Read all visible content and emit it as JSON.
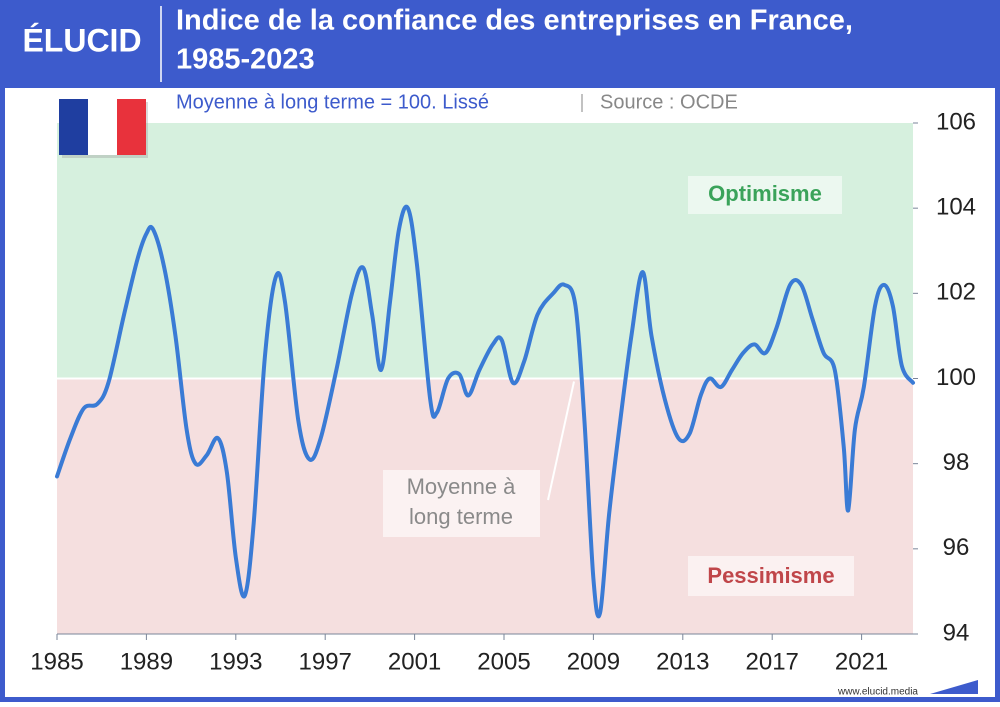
{
  "brand": "ÉLUCID",
  "footer": "www.elucid.media",
  "chart_data": {
    "type": "line",
    "title_lines": [
      "Indice de la confiance des entreprises en France,",
      "1985-2023"
    ],
    "subtitle": "Moyenne à long terme = 100. Lissé",
    "source": "Source : OCDE",
    "annotations": {
      "above": "Optimisme",
      "below": "Pessimisme",
      "reference": [
        "Moyenne à",
        "long terme"
      ]
    },
    "reference_line": 100,
    "x": [
      1985.0,
      1985.6,
      1986.2,
      1986.8,
      1987.3,
      1988.0,
      1988.6,
      1989.0,
      1989.3,
      1989.8,
      1990.3,
      1990.8,
      1991.2,
      1991.7,
      1992.2,
      1992.6,
      1993.0,
      1993.4,
      1993.8,
      1994.3,
      1994.8,
      1995.2,
      1995.8,
      1996.3,
      1996.8,
      1997.5,
      1998.2,
      1998.7,
      1999.1,
      1999.5,
      1999.9,
      2000.3,
      2000.7,
      2001.1,
      2001.7,
      2002.0,
      2002.5,
      2003.0,
      2003.4,
      2003.9,
      2004.5,
      2004.9,
      2005.4,
      2005.9,
      2006.5,
      2007.2,
      2007.7,
      2008.2,
      2008.6,
      2009.0,
      2009.3,
      2009.7,
      2010.2,
      2010.7,
      2011.2,
      2011.6,
      2012.2,
      2012.8,
      2013.3,
      2013.8,
      2014.2,
      2014.7,
      2015.2,
      2015.7,
      2016.2,
      2016.7,
      2017.2,
      2017.8,
      2018.3,
      2018.8,
      2019.3,
      2019.8,
      2020.2,
      2020.4,
      2020.7,
      2021.1,
      2021.6,
      2022.0,
      2022.4,
      2022.8,
      2023.3
    ],
    "series": [
      {
        "color": "#3a7bd5",
        "values": [
          97.7,
          98.6,
          99.3,
          99.4,
          99.9,
          101.5,
          102.8,
          103.4,
          103.5,
          102.6,
          101.0,
          98.8,
          98.0,
          98.2,
          98.6,
          97.8,
          95.8,
          94.9,
          96.6,
          100.5,
          102.4,
          101.8,
          99.0,
          98.1,
          98.6,
          100.2,
          102.0,
          102.6,
          101.5,
          100.2,
          101.8,
          103.5,
          104.0,
          102.7,
          99.5,
          99.2,
          100.0,
          100.1,
          99.6,
          100.2,
          100.8,
          100.9,
          99.9,
          100.4,
          101.5,
          102.0,
          102.2,
          101.7,
          99.0,
          95.3,
          94.5,
          96.8,
          99.0,
          101.0,
          102.5,
          101.0,
          99.5,
          98.6,
          98.7,
          99.6,
          100.0,
          99.8,
          100.2,
          100.6,
          100.8,
          100.6,
          101.2,
          102.2,
          102.2,
          101.4,
          100.6,
          100.2,
          98.4,
          96.9,
          98.8,
          99.8,
          101.7,
          102.2,
          101.7,
          100.3,
          99.9
        ]
      }
    ],
    "xlim": [
      1985,
      2023.3
    ],
    "ylim": [
      94,
      106
    ],
    "xticks": [
      1985,
      1989,
      1993,
      1997,
      2001,
      2005,
      2009,
      2013,
      2017,
      2021
    ],
    "yticks": [
      94,
      96,
      98,
      100,
      102,
      104,
      106
    ],
    "zone_colors": {
      "above": "#d6f0de",
      "below": "#f5dfdf"
    }
  }
}
